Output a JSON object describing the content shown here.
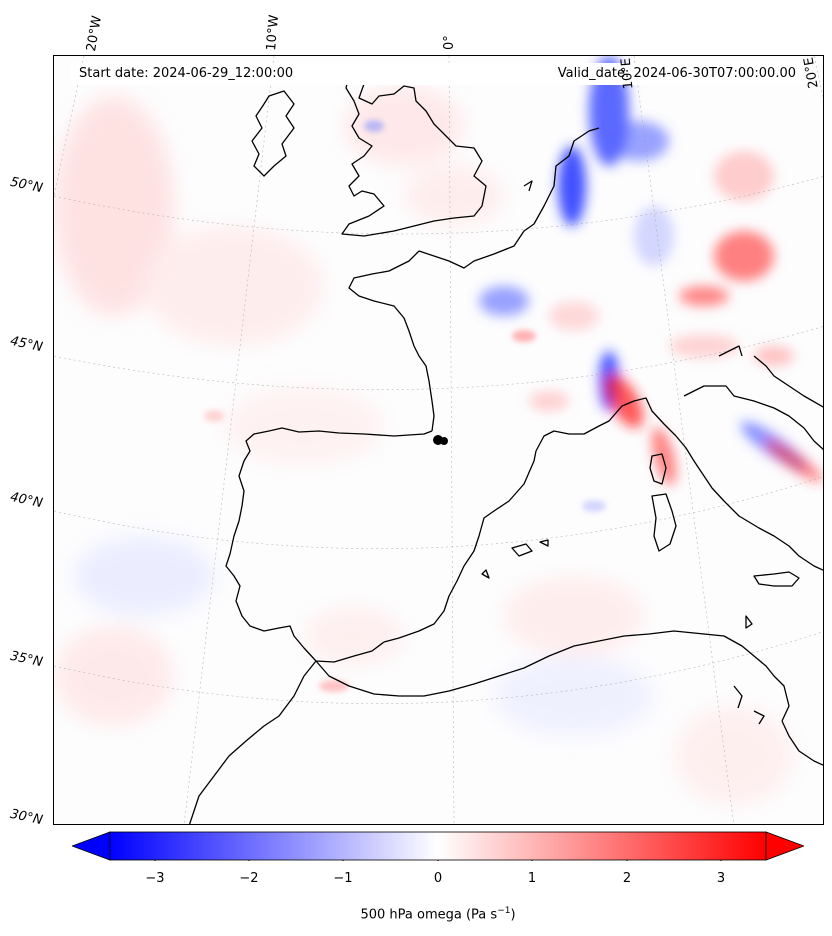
{
  "map": {
    "start_date": "Start date: 2024-06-29_12:00:00",
    "valid_date": "Valid_date: 2024-06-30T07:00:00.00",
    "longitude_labels": [
      "20°W",
      "10°W",
      "0°",
      "10°E",
      "20°E"
    ],
    "latitude_labels": [
      "50°N",
      "45°N",
      "40°N",
      "35°N",
      "30°N"
    ],
    "variable": "500 hPa omega",
    "unit_base": "Pa s",
    "unit_exp": "−1",
    "colormap": "bwr",
    "colors": {
      "negative": "#0000ff",
      "zero": "#ffffff",
      "positive": "#ff0000"
    },
    "colorbar": {
      "ticks": [
        "−3",
        "−2",
        "−1",
        "0",
        "1",
        "2",
        "3"
      ],
      "range": [
        -3.6,
        3.6
      ],
      "extend": "both",
      "orientation": "horizontal"
    }
  }
}
